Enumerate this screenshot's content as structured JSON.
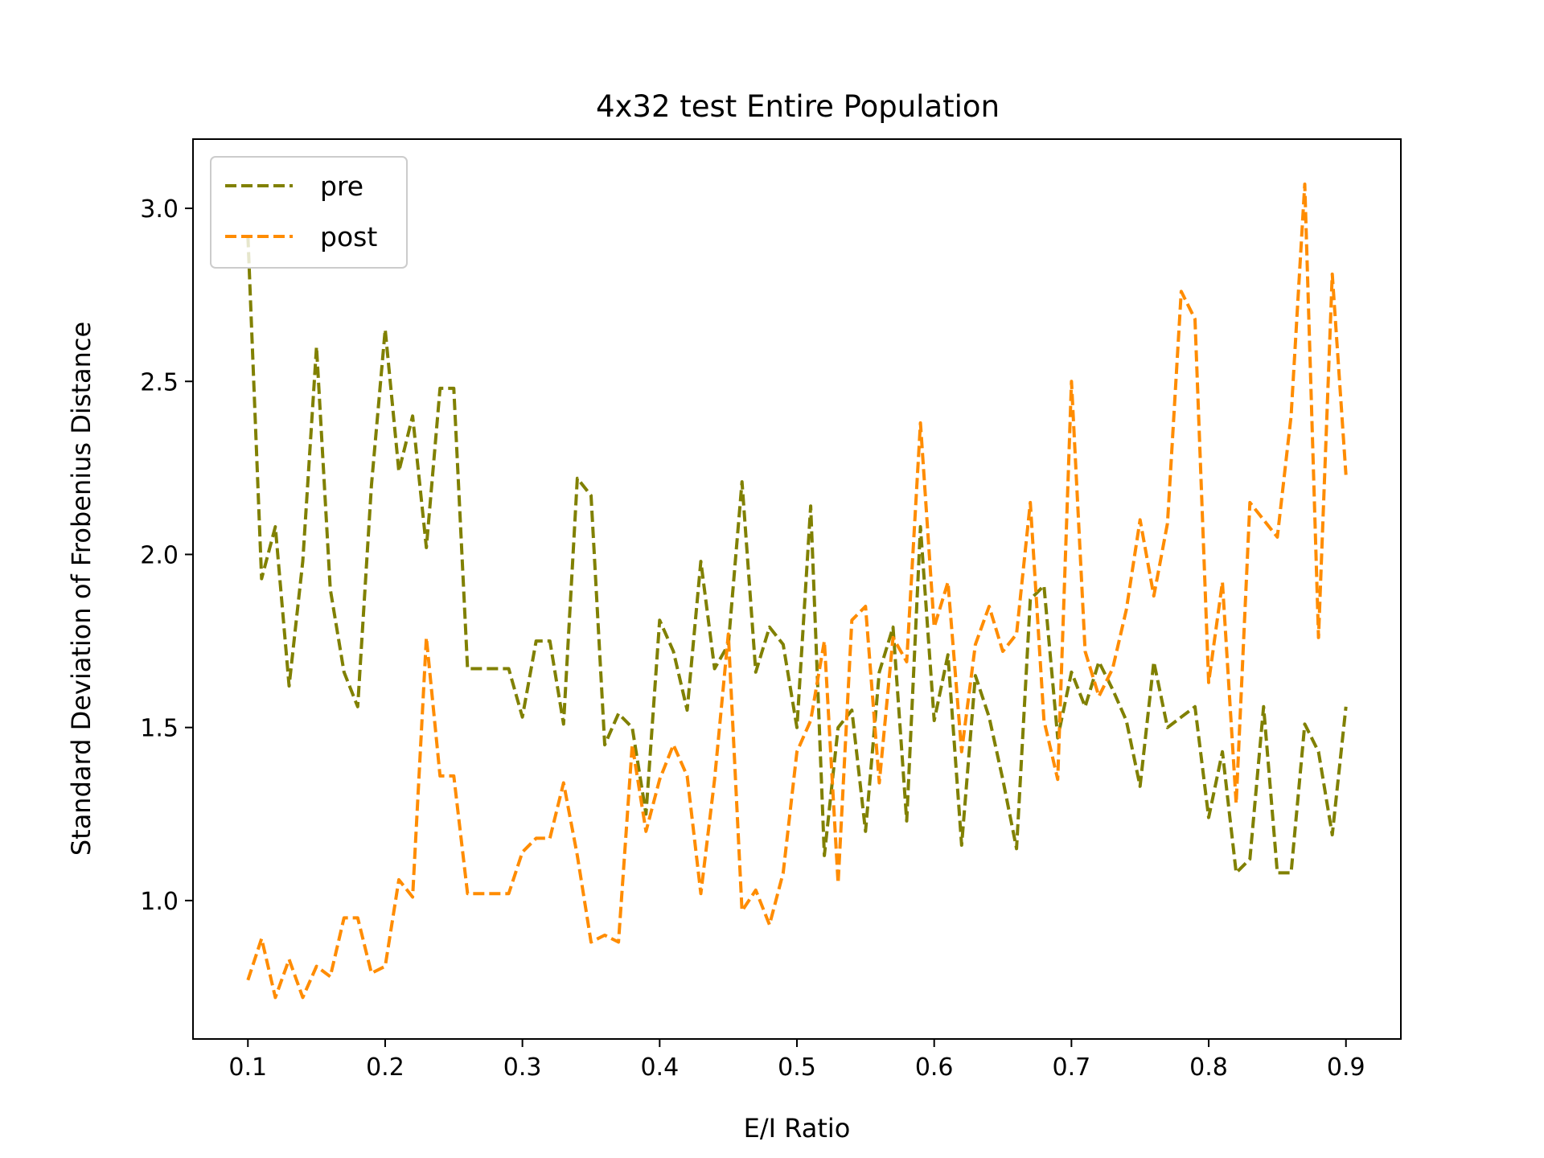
{
  "chart_data": {
    "type": "line",
    "title": "4x32 test Entire Population",
    "xlabel": "E/I Ratio",
    "ylabel": "Standard Deviation of Frobenius Distance",
    "xlim": [
      0.06,
      0.94
    ],
    "ylim": [
      0.6,
      3.2
    ],
    "xticks": [
      "0.1",
      "0.2",
      "0.3",
      "0.4",
      "0.5",
      "0.6",
      "0.7",
      "0.8",
      "0.9"
    ],
    "yticks": [
      "1.0",
      "1.5",
      "2.0",
      "2.5",
      "3.0"
    ],
    "grid": false,
    "legend_position": "upper left",
    "x": [
      0.1,
      0.11,
      0.12,
      0.13,
      0.14,
      0.15,
      0.16,
      0.17,
      0.18,
      0.19,
      0.2,
      0.21,
      0.22,
      0.23,
      0.24,
      0.25,
      0.26,
      0.27,
      0.28,
      0.29,
      0.3,
      0.31,
      0.32,
      0.33,
      0.34,
      0.35,
      0.36,
      0.37,
      0.38,
      0.39,
      0.4,
      0.41,
      0.42,
      0.43,
      0.44,
      0.45,
      0.46,
      0.47,
      0.48,
      0.49,
      0.5,
      0.51,
      0.52,
      0.53,
      0.54,
      0.55,
      0.56,
      0.57,
      0.58,
      0.59,
      0.6,
      0.61,
      0.62,
      0.63,
      0.64,
      0.65,
      0.66,
      0.67,
      0.68,
      0.69,
      0.7,
      0.71,
      0.72,
      0.73,
      0.74,
      0.75,
      0.76,
      0.77,
      0.78,
      0.79,
      0.8,
      0.81,
      0.82,
      0.83,
      0.84,
      0.85,
      0.86,
      0.87,
      0.88,
      0.89,
      0.9
    ],
    "series": [
      {
        "name": "pre",
        "color": "#808000",
        "values": [
          2.92,
          1.93,
          2.08,
          1.62,
          1.98,
          2.6,
          1.9,
          1.66,
          1.56,
          2.2,
          2.65,
          2.24,
          2.4,
          2.02,
          2.48,
          2.48,
          1.67,
          1.67,
          1.67,
          1.67,
          1.53,
          1.75,
          1.75,
          1.51,
          2.22,
          2.17,
          1.45,
          1.54,
          1.5,
          1.25,
          1.81,
          1.72,
          1.55,
          1.98,
          1.67,
          1.74,
          2.21,
          1.66,
          1.79,
          1.74,
          1.5,
          2.14,
          1.13,
          1.5,
          1.55,
          1.2,
          1.66,
          1.79,
          1.23,
          2.08,
          1.52,
          1.71,
          1.16,
          1.65,
          1.53,
          1.35,
          1.15,
          1.87,
          1.91,
          1.47,
          1.66,
          1.56,
          1.69,
          1.61,
          1.52,
          1.33,
          1.69,
          1.5,
          1.53,
          1.56,
          1.24,
          1.43,
          1.08,
          1.12,
          1.56,
          1.08,
          1.08,
          1.51,
          1.43,
          1.19,
          1.56
        ]
      },
      {
        "name": "post",
        "color": "#ff8c00",
        "values": [
          0.77,
          0.89,
          0.72,
          0.83,
          0.72,
          0.81,
          0.78,
          0.95,
          0.95,
          0.79,
          0.81,
          1.06,
          1.01,
          1.76,
          1.36,
          1.36,
          1.02,
          1.02,
          1.02,
          1.02,
          1.14,
          1.18,
          1.18,
          1.34,
          1.13,
          0.88,
          0.9,
          0.88,
          1.45,
          1.2,
          1.35,
          1.45,
          1.36,
          1.02,
          1.35,
          1.77,
          0.97,
          1.03,
          0.93,
          1.08,
          1.43,
          1.52,
          1.75,
          1.05,
          1.81,
          1.85,
          1.34,
          1.76,
          1.69,
          2.38,
          1.79,
          1.92,
          1.43,
          1.74,
          1.85,
          1.72,
          1.77,
          2.15,
          1.52,
          1.35,
          2.5,
          1.72,
          1.59,
          1.67,
          1.84,
          2.1,
          1.88,
          2.09,
          2.76,
          2.68,
          1.63,
          1.92,
          1.28,
          2.15,
          2.1,
          2.05,
          2.4,
          3.07,
          1.76,
          2.81,
          2.23
        ]
      }
    ]
  }
}
